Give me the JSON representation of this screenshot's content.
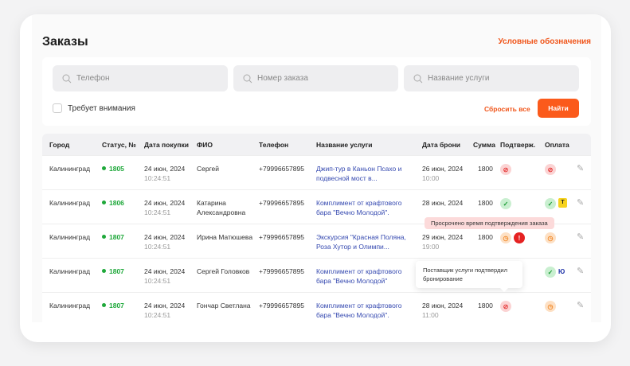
{
  "header": {
    "title": "Заказы",
    "legend_link": "Условные обозначения"
  },
  "filters": {
    "phone_placeholder": "Телефон",
    "order_placeholder": "Номер заказа",
    "service_placeholder": "Название услуги",
    "attention_label": "Требует внимания",
    "reset_label": "Сбросить все",
    "find_label": "Найти"
  },
  "table": {
    "columns": [
      "Город",
      "Статус, №",
      "Дата покупки",
      "ФИО",
      "Телефон",
      "Название услуги",
      "Дата брони",
      "Сумма",
      "Подтверж.",
      "Оплата"
    ],
    "rows": [
      {
        "city": "Калининград",
        "num": "1805",
        "date": "24 июн, 2024",
        "time": "10:24:51",
        "name": "Сергей",
        "phone": "+79996657895",
        "service": "Джип-тур в Каньон Псахо и подвесной мост в...",
        "bdate": "26 июн, 2024",
        "btime": "10:00",
        "sum": "1800",
        "confirm": [
          "declined"
        ],
        "payment": [
          "declined"
        ]
      },
      {
        "city": "Калининград",
        "num": "1806",
        "date": "24 июн, 2024",
        "time": "10:24:51",
        "name": "Катарина Александровна",
        "phone": "+79996657895",
        "service": "Комплимент от крафтового бара \"Вечно Молодой\".",
        "bdate": "28 июн, 2024",
        "btime": "",
        "sum": "1800",
        "confirm": [
          "confirmed"
        ],
        "payment": [
          "confirmed",
          "tinkoff"
        ]
      },
      {
        "city": "Калининград",
        "num": "1807",
        "date": "24 июн, 2024",
        "time": "10:24:51",
        "name": "Ирина Матюшева",
        "phone": "+79996657895",
        "service": "Экскурсия \"Красная Поляна, Роза Хутор и Олимпи...",
        "bdate": "29 июн, 2024",
        "btime": "19:00",
        "sum": "1800",
        "confirm": [
          "pending",
          "overdue"
        ],
        "payment": [
          "pending"
        ]
      },
      {
        "city": "Калининград",
        "num": "1807",
        "date": "24 июн, 2024",
        "time": "10:24:51",
        "name": "Сергей Головков",
        "phone": "+79996657895",
        "service": "Комплимент от крафтового бара \"Вечно Молодой\"",
        "bdate": "",
        "btime": "",
        "sum": "",
        "confirm": [],
        "payment": [
          "confirmed",
          "yoomoney"
        ]
      },
      {
        "city": "Калининград",
        "num": "1807",
        "date": "24 июн, 2024",
        "time": "10:24:51",
        "name": "Гончар Светлана",
        "phone": "+79996657895",
        "service": "Комплимент от крафтового бара \"Вечно Молодой\".",
        "bdate": "28 июн, 2024",
        "btime": "11:00",
        "sum": "1800",
        "confirm": [
          "declined"
        ],
        "payment": [
          "pending"
        ]
      }
    ]
  },
  "tooltips": {
    "overdue": "Просрочено время подтверждения заказа",
    "confirmed": "Поставщик услуги подтвердил бронирование"
  },
  "colors": {
    "accent": "#fb5a1b",
    "status_green": "#1ea83a",
    "link": "#3549b0"
  }
}
